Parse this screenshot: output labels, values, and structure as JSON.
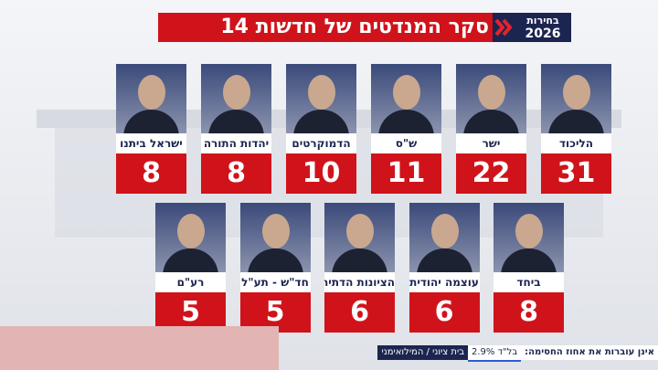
{
  "header": {
    "title": "סקר המנדטים של חדשות 14",
    "brand": "בחירות",
    "year": "2026"
  },
  "rows": [
    [
      {
        "name": "הליכוד",
        "seats": 31
      },
      {
        "name": "ישר",
        "seats": 22
      },
      {
        "name": "ש\"ס",
        "seats": 11
      },
      {
        "name": "הדמוקרטים",
        "seats": 10
      },
      {
        "name": "יהדות התורה",
        "seats": 8
      },
      {
        "name": "ישראל ביתנו",
        "seats": 8
      }
    ],
    [
      {
        "name": "ביחד",
        "seats": 8
      },
      {
        "name": "עוצמה יהודית",
        "seats": 6
      },
      {
        "name": "הציונות הדתית",
        "seats": 6
      },
      {
        "name": "חד\"ש - תע\"ל",
        "seats": 5
      },
      {
        "name": "רע\"ם",
        "seats": 5
      }
    ]
  ],
  "ticker": {
    "lead": "אינן עוברות את אחוז החסימה:",
    "items": [
      "בל\"ד 2.9%",
      "בית ציוני / המילואימני"
    ]
  }
}
